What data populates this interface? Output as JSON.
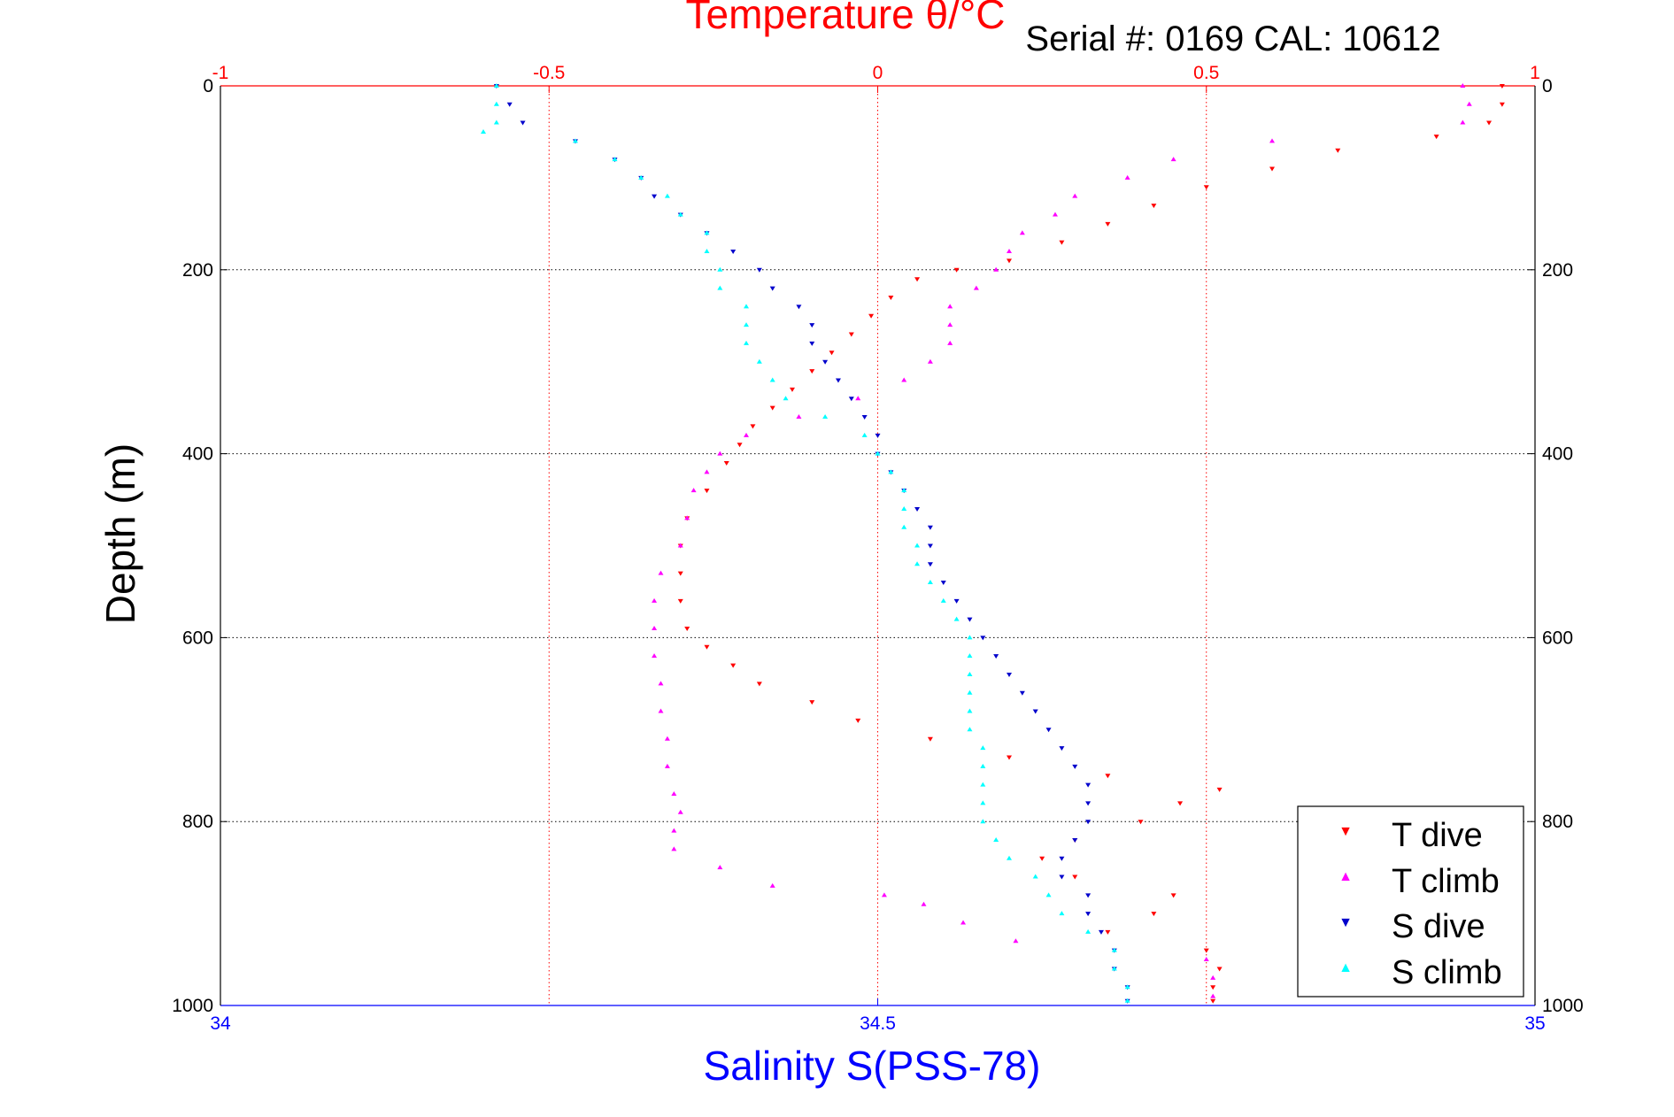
{
  "chart_data": {
    "type": "scatter",
    "title": "Temperature θ/°C",
    "subtitle": "Serial #: 0169 CAL: 10612",
    "ylabel": "Depth (m)",
    "xlabel_bottom": "Salinity S(PSS-78)",
    "xlabel_top": "Temperature θ/°C",
    "ylim": [
      0,
      1000
    ],
    "y_inverted": true,
    "xlim_top": [
      -1,
      1
    ],
    "xlim_bottom": [
      34,
      35
    ],
    "top_ticks": [
      -1,
      -0.5,
      0,
      0.5,
      1
    ],
    "top_tick_labels": [
      "-1",
      "-0.5",
      "0",
      "0.5",
      "1"
    ],
    "bottom_ticks": [
      34,
      34.5,
      35
    ],
    "bottom_tick_labels": [
      "34",
      "34.5",
      "35"
    ],
    "y_ticks": [
      0,
      200,
      400,
      600,
      800,
      1000
    ],
    "y_tick_labels": [
      "0",
      "200",
      "400",
      "600",
      "800",
      "1000"
    ],
    "grid": true,
    "legend_position": "bottom-right",
    "colors": {
      "temperature_axis": "#ff0000",
      "salinity_axis": "#0000ff",
      "grid": "#000000",
      "t_dive": "#ff0000",
      "t_climb": "#ff00ff",
      "s_dive": "#0000cc",
      "s_climb": "#00ffff"
    },
    "series": [
      {
        "name": "T dive",
        "axis": "temperature",
        "color": "#ff0000",
        "points": [
          [
            0,
            0.95
          ],
          [
            20,
            0.95
          ],
          [
            40,
            0.93
          ],
          [
            55,
            0.85
          ],
          [
            70,
            0.7
          ],
          [
            90,
            0.6
          ],
          [
            110,
            0.5
          ],
          [
            130,
            0.42
          ],
          [
            150,
            0.35
          ],
          [
            170,
            0.28
          ],
          [
            190,
            0.2
          ],
          [
            200,
            0.12
          ],
          [
            210,
            0.06
          ],
          [
            230,
            0.02
          ],
          [
            250,
            -0.01
          ],
          [
            270,
            -0.04
          ],
          [
            290,
            -0.07
          ],
          [
            310,
            -0.1
          ],
          [
            330,
            -0.13
          ],
          [
            350,
            -0.16
          ],
          [
            370,
            -0.19
          ],
          [
            390,
            -0.21
          ],
          [
            410,
            -0.23
          ],
          [
            440,
            -0.26
          ],
          [
            470,
            -0.29
          ],
          [
            500,
            -0.3
          ],
          [
            530,
            -0.3
          ],
          [
            560,
            -0.3
          ],
          [
            590,
            -0.29
          ],
          [
            610,
            -0.26
          ],
          [
            630,
            -0.22
          ],
          [
            650,
            -0.18
          ],
          [
            670,
            -0.1
          ],
          [
            690,
            -0.03
          ],
          [
            710,
            0.08
          ],
          [
            730,
            0.2
          ],
          [
            750,
            0.35
          ],
          [
            765,
            0.52
          ],
          [
            780,
            0.46
          ],
          [
            800,
            0.4
          ],
          [
            820,
            0.3
          ],
          [
            840,
            0.25
          ],
          [
            860,
            0.3
          ],
          [
            880,
            0.45
          ],
          [
            900,
            0.42
          ],
          [
            920,
            0.35
          ],
          [
            940,
            0.5
          ],
          [
            960,
            0.52
          ],
          [
            980,
            0.51
          ],
          [
            995,
            0.51
          ]
        ]
      },
      {
        "name": "T climb",
        "axis": "temperature",
        "color": "#ff00ff",
        "points": [
          [
            0,
            0.89
          ],
          [
            20,
            0.9
          ],
          [
            40,
            0.89
          ],
          [
            60,
            0.6
          ],
          [
            80,
            0.45
          ],
          [
            100,
            0.38
          ],
          [
            120,
            0.3
          ],
          [
            140,
            0.27
          ],
          [
            160,
            0.22
          ],
          [
            180,
            0.2
          ],
          [
            200,
            0.18
          ],
          [
            220,
            0.15
          ],
          [
            240,
            0.11
          ],
          [
            260,
            0.11
          ],
          [
            280,
            0.11
          ],
          [
            300,
            0.08
          ],
          [
            320,
            0.04
          ],
          [
            340,
            -0.03
          ],
          [
            360,
            -0.12
          ],
          [
            380,
            -0.2
          ],
          [
            400,
            -0.24
          ],
          [
            420,
            -0.26
          ],
          [
            440,
            -0.28
          ],
          [
            470,
            -0.29
          ],
          [
            500,
            -0.3
          ],
          [
            530,
            -0.33
          ],
          [
            560,
            -0.34
          ],
          [
            590,
            -0.34
          ],
          [
            620,
            -0.34
          ],
          [
            650,
            -0.33
          ],
          [
            680,
            -0.33
          ],
          [
            710,
            -0.32
          ],
          [
            740,
            -0.32
          ],
          [
            770,
            -0.31
          ],
          [
            790,
            -0.3
          ],
          [
            810,
            -0.31
          ],
          [
            830,
            -0.31
          ],
          [
            850,
            -0.24
          ],
          [
            870,
            -0.16
          ],
          [
            880,
            0.01
          ],
          [
            890,
            0.07
          ],
          [
            910,
            0.13
          ],
          [
            930,
            0.21
          ],
          [
            950,
            0.5
          ],
          [
            970,
            0.51
          ],
          [
            990,
            0.51
          ]
        ]
      },
      {
        "name": "S dive",
        "axis": "salinity",
        "color": "#0000cc",
        "points": [
          [
            0,
            34.21
          ],
          [
            20,
            34.22
          ],
          [
            40,
            34.23
          ],
          [
            60,
            34.27
          ],
          [
            80,
            34.3
          ],
          [
            100,
            34.32
          ],
          [
            120,
            34.33
          ],
          [
            140,
            34.35
          ],
          [
            160,
            34.37
          ],
          [
            180,
            34.39
          ],
          [
            200,
            34.41
          ],
          [
            220,
            34.42
          ],
          [
            240,
            34.44
          ],
          [
            260,
            34.45
          ],
          [
            280,
            34.45
          ],
          [
            300,
            34.46
          ],
          [
            320,
            34.47
          ],
          [
            340,
            34.48
          ],
          [
            360,
            34.49
          ],
          [
            380,
            34.5
          ],
          [
            400,
            34.5
          ],
          [
            420,
            34.51
          ],
          [
            440,
            34.52
          ],
          [
            460,
            34.53
          ],
          [
            480,
            34.54
          ],
          [
            500,
            34.54
          ],
          [
            520,
            34.54
          ],
          [
            540,
            34.55
          ],
          [
            560,
            34.56
          ],
          [
            580,
            34.57
          ],
          [
            600,
            34.58
          ],
          [
            620,
            34.59
          ],
          [
            640,
            34.6
          ],
          [
            660,
            34.61
          ],
          [
            680,
            34.62
          ],
          [
            700,
            34.63
          ],
          [
            720,
            34.64
          ],
          [
            740,
            34.65
          ],
          [
            760,
            34.66
          ],
          [
            780,
            34.66
          ],
          [
            800,
            34.66
          ],
          [
            820,
            34.65
          ],
          [
            840,
            34.64
          ],
          [
            860,
            34.64
          ],
          [
            880,
            34.66
          ],
          [
            900,
            34.66
          ],
          [
            920,
            34.67
          ],
          [
            940,
            34.68
          ],
          [
            960,
            34.68
          ],
          [
            980,
            34.69
          ],
          [
            995,
            34.69
          ]
        ]
      },
      {
        "name": "S climb",
        "axis": "salinity",
        "color": "#00ffff",
        "points": [
          [
            0,
            34.21
          ],
          [
            20,
            34.21
          ],
          [
            40,
            34.21
          ],
          [
            50,
            34.2
          ],
          [
            60,
            34.27
          ],
          [
            80,
            34.3
          ],
          [
            100,
            34.32
          ],
          [
            120,
            34.34
          ],
          [
            140,
            34.35
          ],
          [
            160,
            34.37
          ],
          [
            180,
            34.37
          ],
          [
            200,
            34.38
          ],
          [
            220,
            34.38
          ],
          [
            240,
            34.4
          ],
          [
            260,
            34.4
          ],
          [
            280,
            34.4
          ],
          [
            300,
            34.41
          ],
          [
            320,
            34.42
          ],
          [
            340,
            34.43
          ],
          [
            360,
            34.46
          ],
          [
            380,
            34.49
          ],
          [
            400,
            34.5
          ],
          [
            420,
            34.51
          ],
          [
            440,
            34.52
          ],
          [
            460,
            34.52
          ],
          [
            480,
            34.52
          ],
          [
            500,
            34.53
          ],
          [
            520,
            34.53
          ],
          [
            540,
            34.54
          ],
          [
            560,
            34.55
          ],
          [
            580,
            34.56
          ],
          [
            600,
            34.57
          ],
          [
            620,
            34.57
          ],
          [
            640,
            34.57
          ],
          [
            660,
            34.57
          ],
          [
            680,
            34.57
          ],
          [
            700,
            34.57
          ],
          [
            720,
            34.58
          ],
          [
            740,
            34.58
          ],
          [
            760,
            34.58
          ],
          [
            780,
            34.58
          ],
          [
            800,
            34.58
          ],
          [
            820,
            34.59
          ],
          [
            840,
            34.6
          ],
          [
            860,
            34.62
          ],
          [
            880,
            34.63
          ],
          [
            900,
            34.64
          ],
          [
            920,
            34.66
          ],
          [
            940,
            34.68
          ],
          [
            960,
            34.68
          ],
          [
            980,
            34.69
          ],
          [
            995,
            34.69
          ]
        ]
      }
    ]
  }
}
